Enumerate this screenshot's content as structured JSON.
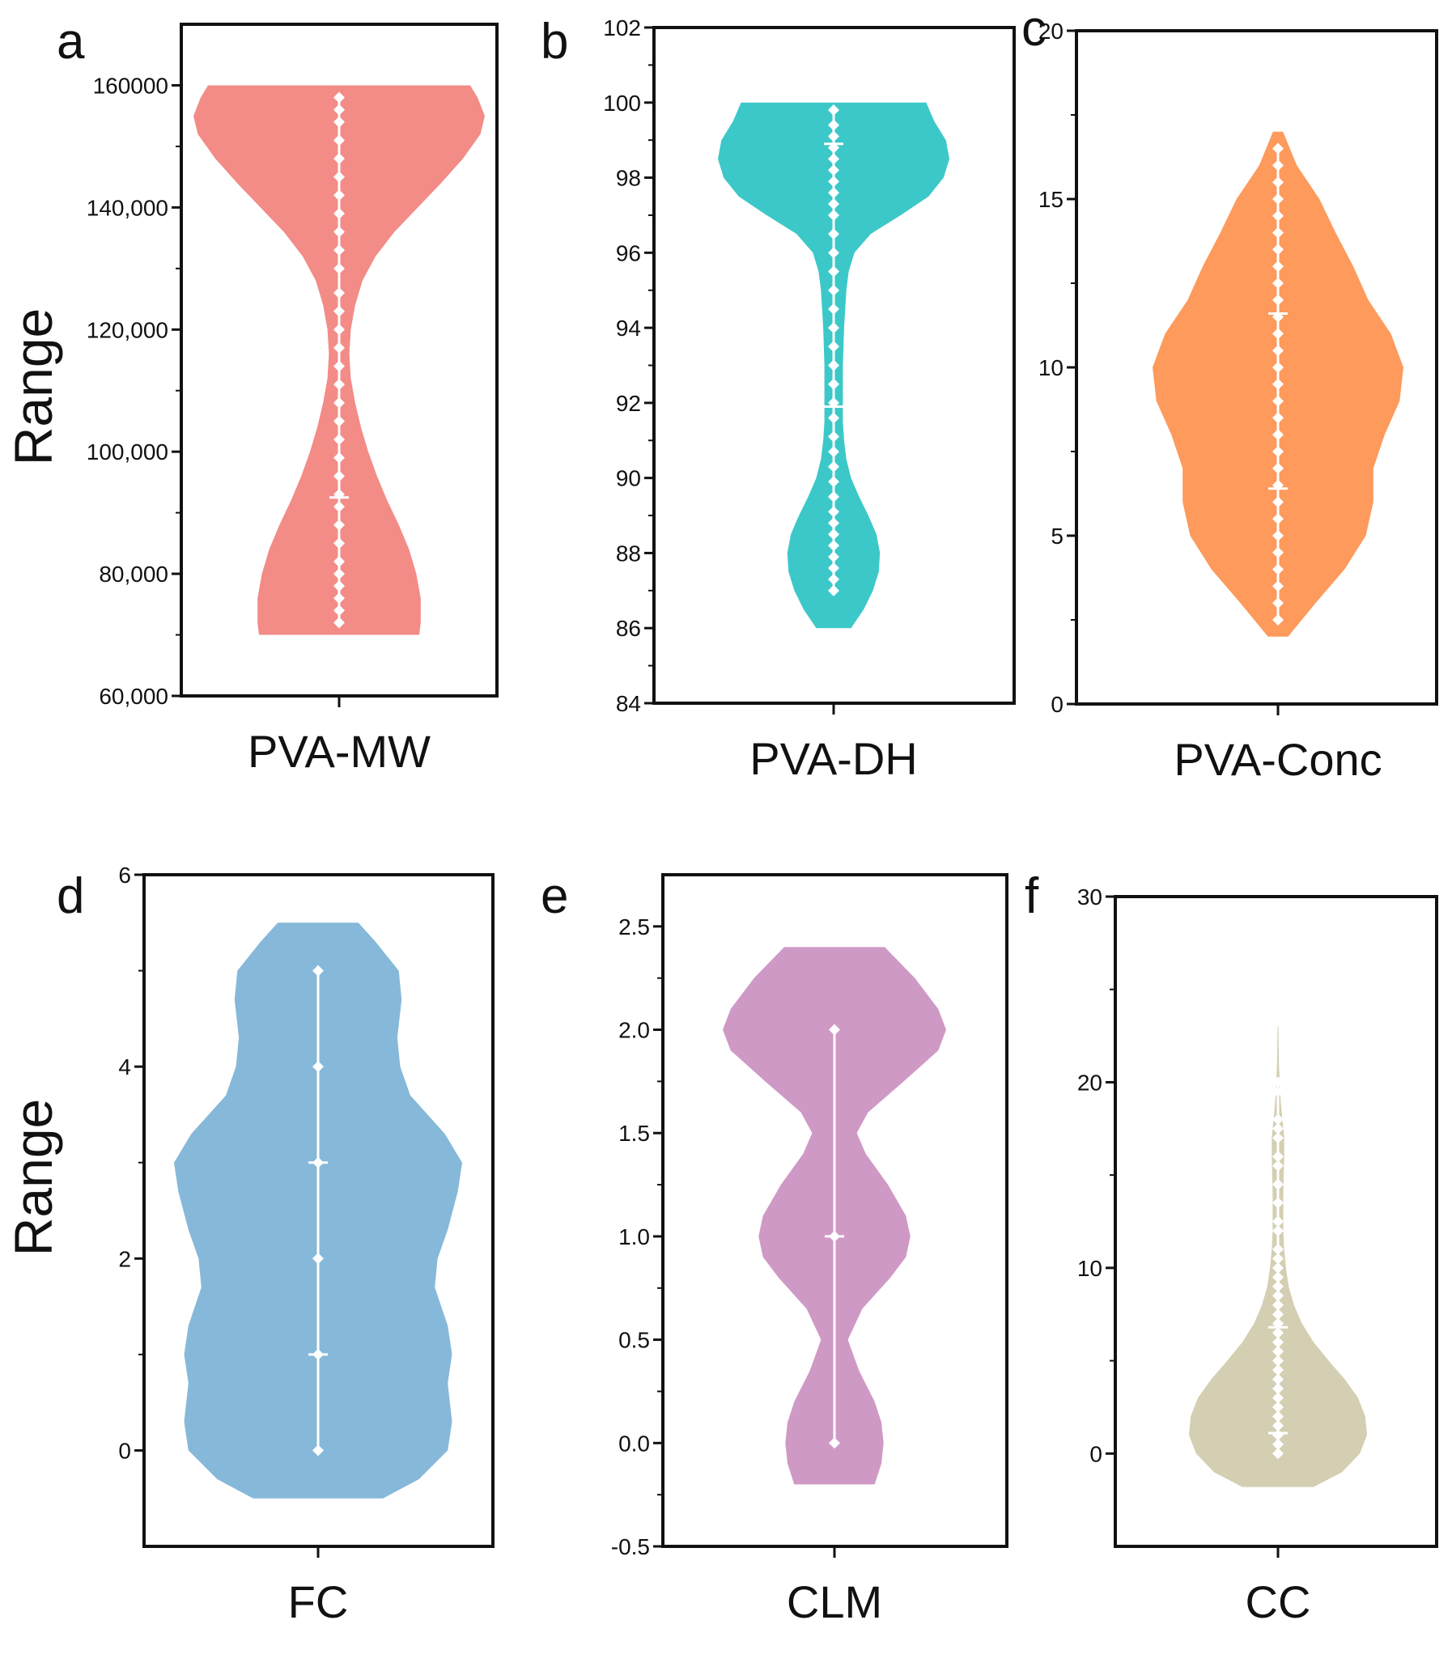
{
  "figure": {
    "y_axis_label": "Range"
  },
  "chart_data": [
    {
      "panel": "a",
      "type": "violin",
      "category": "PVA-MW",
      "ylabel": "Range",
      "ylim": [
        60000,
        170000
      ],
      "ticks": [
        60000,
        80000,
        100000,
        120000,
        140000,
        160000
      ],
      "tick_labels": [
        "60,000",
        "80,000",
        "100,000",
        "120,000",
        "140,000",
        "160000"
      ],
      "color": "#F38B87",
      "density": [
        [
          70000,
          0.55
        ],
        [
          72000,
          0.56
        ],
        [
          76000,
          0.56
        ],
        [
          80000,
          0.53
        ],
        [
          84000,
          0.48
        ],
        [
          88000,
          0.41
        ],
        [
          92000,
          0.33
        ],
        [
          96000,
          0.26
        ],
        [
          100000,
          0.2
        ],
        [
          104000,
          0.15
        ],
        [
          108000,
          0.11
        ],
        [
          112000,
          0.08
        ],
        [
          116000,
          0.07
        ],
        [
          120000,
          0.08
        ],
        [
          124000,
          0.11
        ],
        [
          128000,
          0.16
        ],
        [
          132000,
          0.25
        ],
        [
          136000,
          0.38
        ],
        [
          140000,
          0.54
        ],
        [
          144000,
          0.7
        ],
        [
          148000,
          0.85
        ],
        [
          152000,
          0.97
        ],
        [
          155000,
          1.0
        ],
        [
          158000,
          0.95
        ],
        [
          160000,
          0.9
        ]
      ],
      "points": [
        72000,
        74000,
        76000,
        78000,
        80000,
        82000,
        85000,
        88000,
        91000,
        93000,
        96000,
        99000,
        102000,
        105000,
        108000,
        111000,
        114000,
        117000,
        120000,
        123000,
        126000,
        130000,
        133000,
        136000,
        139000,
        142000,
        145000,
        148000,
        151000,
        154000,
        156000,
        158000
      ],
      "range_min": 72000,
      "range_max": 158000,
      "whisker_markers": [
        92500
      ]
    },
    {
      "panel": "b",
      "type": "violin",
      "category": "PVA-DH",
      "ylabel": "",
      "ylim": [
        84,
        102
      ],
      "ticks": [
        84,
        86,
        88,
        90,
        92,
        94,
        96,
        98,
        100,
        102
      ],
      "tick_labels": [
        "84",
        "86",
        "88",
        "90",
        "92",
        "94",
        "96",
        "98",
        "100",
        "102"
      ],
      "color": "#3CC8C8",
      "density": [
        [
          86.0,
          0.15
        ],
        [
          86.5,
          0.26
        ],
        [
          87.0,
          0.34
        ],
        [
          87.5,
          0.39
        ],
        [
          88.0,
          0.4
        ],
        [
          88.5,
          0.37
        ],
        [
          89.0,
          0.3
        ],
        [
          89.5,
          0.22
        ],
        [
          90.0,
          0.15
        ],
        [
          90.5,
          0.11
        ],
        [
          91.0,
          0.09
        ],
        [
          91.5,
          0.08
        ],
        [
          92.0,
          0.08
        ],
        [
          93.0,
          0.08
        ],
        [
          94.0,
          0.09
        ],
        [
          95.0,
          0.11
        ],
        [
          95.5,
          0.13
        ],
        [
          96.0,
          0.18
        ],
        [
          96.5,
          0.32
        ],
        [
          97.0,
          0.58
        ],
        [
          97.5,
          0.82
        ],
        [
          98.0,
          0.95
        ],
        [
          98.5,
          1.0
        ],
        [
          99.0,
          0.97
        ],
        [
          99.5,
          0.87
        ],
        [
          100.0,
          0.8
        ]
      ],
      "points": [
        87.0,
        87.3,
        87.6,
        87.9,
        88.2,
        88.5,
        88.8,
        89.1,
        89.5,
        89.9,
        90.3,
        90.7,
        91.1,
        91.6,
        92.0,
        92.5,
        93.0,
        93.5,
        94.0,
        94.5,
        95.0,
        95.5,
        96.0,
        96.5,
        97.0,
        97.3,
        97.6,
        97.9,
        98.2,
        98.5,
        98.8,
        99.1,
        99.4,
        99.8
      ],
      "range_min": 87.0,
      "range_max": 99.8,
      "whisker_markers": [
        91.9,
        98.9
      ]
    },
    {
      "panel": "c",
      "type": "violin",
      "category": "PVA-Conc",
      "ylabel": "",
      "ylim": [
        0,
        20
      ],
      "ticks": [
        0,
        5,
        10,
        15,
        20
      ],
      "tick_labels": [
        "0",
        "5",
        "10",
        "15",
        "20"
      ],
      "color": "#FD9A5C",
      "density": [
        [
          2.0,
          0.08
        ],
        [
          3.0,
          0.3
        ],
        [
          4.0,
          0.53
        ],
        [
          5.0,
          0.7
        ],
        [
          6.0,
          0.76
        ],
        [
          7.0,
          0.76
        ],
        [
          8.0,
          0.85
        ],
        [
          9.0,
          0.97
        ],
        [
          10.0,
          1.0
        ],
        [
          11.0,
          0.9
        ],
        [
          12.0,
          0.72
        ],
        [
          13.0,
          0.6
        ],
        [
          14.0,
          0.46
        ],
        [
          15.0,
          0.33
        ],
        [
          16.0,
          0.15
        ],
        [
          17.0,
          0.04
        ]
      ],
      "points": [
        2.5,
        3.0,
        3.5,
        4.0,
        4.5,
        5.0,
        5.5,
        6.0,
        6.5,
        7.0,
        7.5,
        8.0,
        8.5,
        9.0,
        9.5,
        10.0,
        10.5,
        11.0,
        11.5,
        12.0,
        12.5,
        13.0,
        13.5,
        14.0,
        14.5,
        15.0,
        15.5,
        16.0,
        16.5
      ],
      "range_min": 2.5,
      "range_max": 16.5,
      "whisker_markers": [
        6.4,
        11.6
      ]
    },
    {
      "panel": "d",
      "type": "violin",
      "category": "FC",
      "ylabel": "Range",
      "ylim": [
        -1,
        6
      ],
      "ticks": [
        0,
        2,
        4,
        6
      ],
      "tick_labels": [
        "0",
        "2",
        "4",
        "6"
      ],
      "color": "#86B8D9",
      "density": [
        [
          -0.5,
          0.45
        ],
        [
          -0.3,
          0.7
        ],
        [
          0.0,
          0.9
        ],
        [
          0.3,
          0.93
        ],
        [
          0.7,
          0.9
        ],
        [
          1.0,
          0.93
        ],
        [
          1.3,
          0.9
        ],
        [
          1.7,
          0.81
        ],
        [
          2.0,
          0.83
        ],
        [
          2.3,
          0.9
        ],
        [
          2.7,
          0.97
        ],
        [
          3.0,
          1.0
        ],
        [
          3.3,
          0.88
        ],
        [
          3.7,
          0.64
        ],
        [
          4.0,
          0.57
        ],
        [
          4.3,
          0.55
        ],
        [
          4.7,
          0.58
        ],
        [
          5.0,
          0.56
        ],
        [
          5.3,
          0.4
        ],
        [
          5.5,
          0.28
        ]
      ],
      "points": [
        0,
        1,
        2,
        3,
        4,
        5
      ],
      "range_min": 0,
      "range_max": 5,
      "whisker_markers": [
        1,
        3
      ]
    },
    {
      "panel": "e",
      "type": "violin",
      "category": "CLM",
      "ylabel": "",
      "ylim": [
        -0.5,
        2.75
      ],
      "ticks": [
        -0.5,
        0.0,
        0.5,
        1.0,
        1.5,
        2.0,
        2.5
      ],
      "tick_labels": [
        "-0.5",
        "0.0",
        "0.5",
        "1.0",
        "1.5",
        "2.0",
        "2.5"
      ],
      "color": "#CF99C6",
      "density": [
        [
          -0.2,
          0.36
        ],
        [
          -0.1,
          0.42
        ],
        [
          0.0,
          0.44
        ],
        [
          0.1,
          0.42
        ],
        [
          0.2,
          0.36
        ],
        [
          0.35,
          0.22
        ],
        [
          0.5,
          0.12
        ],
        [
          0.65,
          0.25
        ],
        [
          0.8,
          0.5
        ],
        [
          0.9,
          0.64
        ],
        [
          1.0,
          0.68
        ],
        [
          1.1,
          0.64
        ],
        [
          1.25,
          0.48
        ],
        [
          1.4,
          0.28
        ],
        [
          1.5,
          0.2
        ],
        [
          1.6,
          0.3
        ],
        [
          1.75,
          0.62
        ],
        [
          1.9,
          0.93
        ],
        [
          2.0,
          1.0
        ],
        [
          2.1,
          0.93
        ],
        [
          2.25,
          0.72
        ],
        [
          2.4,
          0.45
        ]
      ],
      "points": [
        0,
        1,
        2
      ],
      "range_min": 0,
      "range_max": 2,
      "whisker_markers": [
        1
      ]
    },
    {
      "panel": "f",
      "type": "violin",
      "category": "CC",
      "ylabel": "",
      "ylim": [
        -5,
        30
      ],
      "ticks": [
        0,
        10,
        20,
        30
      ],
      "tick_labels": [
        "0",
        "10",
        "20",
        "30"
      ],
      "color": "#D4CFB3",
      "density": [
        [
          -1.8,
          0.4
        ],
        [
          -1.0,
          0.72
        ],
        [
          0.0,
          0.92
        ],
        [
          1.0,
          1.0
        ],
        [
          2.0,
          0.98
        ],
        [
          3.0,
          0.9
        ],
        [
          4.0,
          0.75
        ],
        [
          5.0,
          0.57
        ],
        [
          6.0,
          0.4
        ],
        [
          7.0,
          0.27
        ],
        [
          8.0,
          0.18
        ],
        [
          9.0,
          0.12
        ],
        [
          10.0,
          0.09
        ],
        [
          11.0,
          0.07
        ],
        [
          12.0,
          0.06
        ],
        [
          14.0,
          0.06
        ],
        [
          16.0,
          0.07
        ],
        [
          17.0,
          0.07
        ],
        [
          18.0,
          0.05
        ],
        [
          19.0,
          0.03
        ],
        [
          20.0,
          0.02
        ],
        [
          21.0,
          0.01
        ],
        [
          23.0,
          0.005
        ]
      ],
      "points": [
        0,
        0.5,
        1.0,
        1.5,
        2.0,
        2.5,
        3.0,
        3.5,
        4.0,
        4.5,
        5.0,
        5.5,
        6.0,
        6.5,
        7.0,
        7.5,
        8.0,
        8.5,
        9.0,
        9.5,
        10.0,
        10.5,
        11.0,
        12.0,
        12.5,
        13.5,
        14.5,
        15.5,
        16.0,
        17.0,
        17.5,
        18.0,
        19.5,
        20.0
      ],
      "range_min": 0,
      "range_max": 20,
      "whisker_markers": [
        1.1,
        6.8
      ]
    }
  ]
}
